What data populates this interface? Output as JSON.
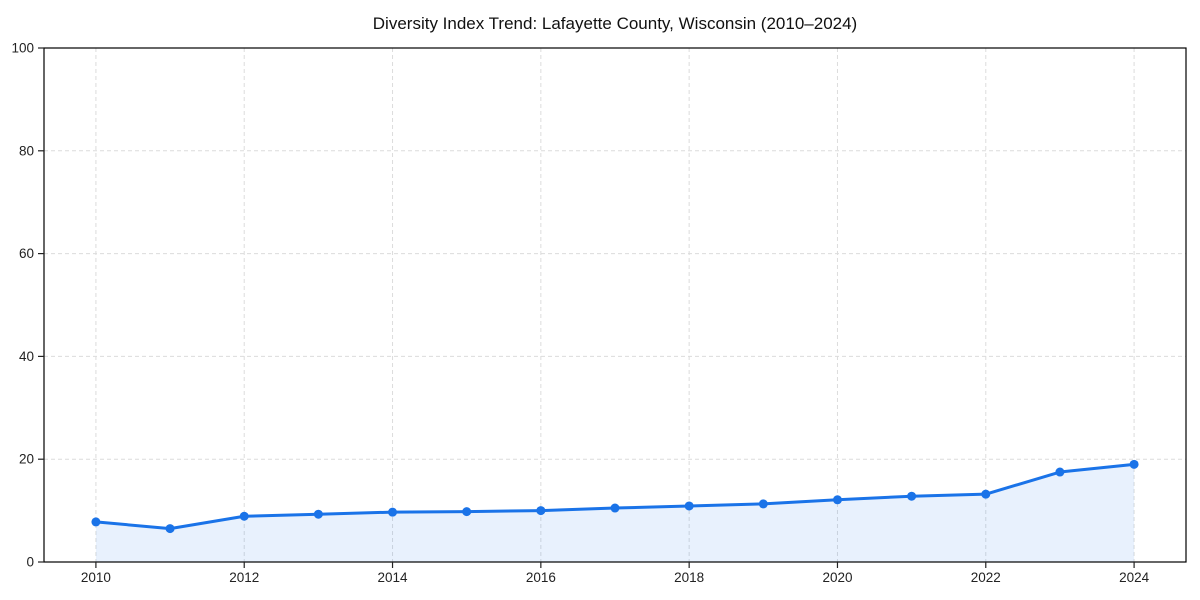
{
  "chart_data": {
    "type": "line",
    "title": "Diversity Index Trend: Lafayette County, Wisconsin (2010–2024)",
    "series_name": "Diversity Index",
    "x": [
      2010,
      2011,
      2012,
      2013,
      2014,
      2015,
      2016,
      2017,
      2018,
      2019,
      2020,
      2021,
      2022,
      2023,
      2024
    ],
    "values": [
      7.8,
      6.5,
      8.9,
      9.3,
      9.7,
      9.8,
      10.0,
      10.5,
      10.9,
      11.3,
      12.1,
      12.8,
      13.2,
      17.5,
      19.0
    ],
    "xlabel": "",
    "ylabel": "",
    "xlim": [
      2009.3,
      2024.7
    ],
    "ylim": [
      0,
      100
    ],
    "x_ticks": [
      2010,
      2012,
      2014,
      2016,
      2018,
      2020,
      2022,
      2024
    ],
    "y_ticks": [
      0,
      20,
      40,
      60,
      80,
      100
    ],
    "grid": "dashed-both-axes",
    "legend": "none",
    "marker": "circle",
    "area_fill": true,
    "colors": {
      "line": "#1a73e8",
      "marker": "#1a73e8",
      "area": "rgba(26,115,232,0.10)",
      "grid": "#dcdcdc",
      "axis": "#000000",
      "tick": "#222222",
      "tick_label": "#222222",
      "title": "#111111",
      "background": "#ffffff"
    }
  }
}
